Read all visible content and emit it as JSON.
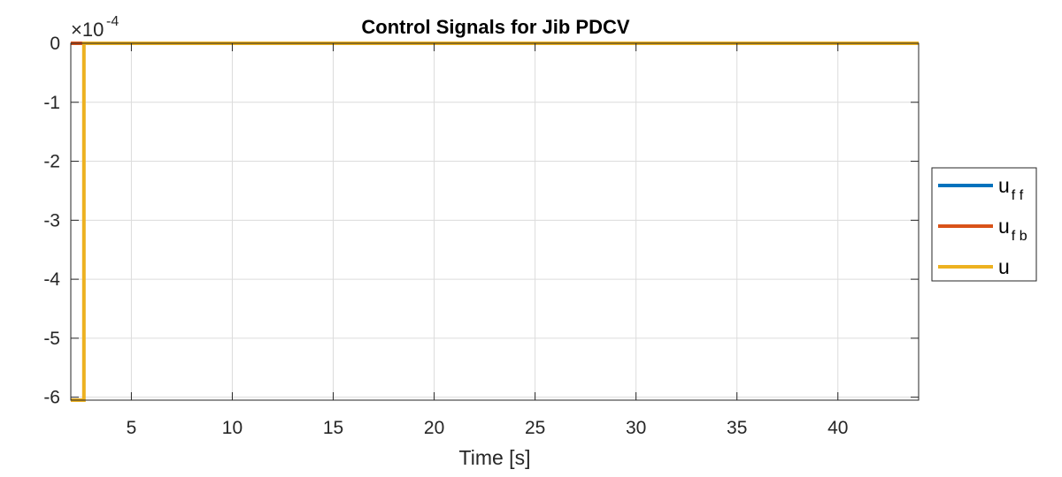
{
  "chart_data": {
    "type": "line",
    "title": "Control Signals for Jib PDCV",
    "xlabel": "Time [s]",
    "ylabel": "",
    "xlim": [
      2,
      44
    ],
    "ylim": [
      -6.05,
      0
    ],
    "y_exponent_label": "×10",
    "y_exponent_power": "-4",
    "xticks": [
      5,
      10,
      15,
      20,
      25,
      30,
      35,
      40
    ],
    "xtick_labels": [
      "5",
      "10",
      "15",
      "20",
      "25",
      "30",
      "35",
      "40"
    ],
    "yticks": [
      -6,
      -5,
      -4,
      -3,
      -2,
      -1,
      0
    ],
    "ytick_labels": [
      "-6",
      "-5",
      "-4",
      "-3",
      "-2",
      "-1",
      "0"
    ],
    "grid": true,
    "legend_position": "right-outside",
    "series": [
      {
        "legend_main": "u",
        "legend_sub": "f f",
        "color": "#0072BD",
        "x": [
          2,
          44
        ],
        "y": [
          0,
          0
        ]
      },
      {
        "legend_main": "u",
        "legend_sub": "f b",
        "color": "#D95319",
        "x": [
          2,
          2.65,
          2.65,
          44
        ],
        "y": [
          0,
          0,
          0,
          0
        ]
      },
      {
        "legend_main": "u",
        "legend_sub": "",
        "color": "#EDB120",
        "x": [
          2,
          2.6,
          2.65,
          2.65,
          2.7,
          44
        ],
        "y": [
          -6.05,
          -6.05,
          -6.05,
          0,
          0,
          0
        ]
      }
    ]
  }
}
